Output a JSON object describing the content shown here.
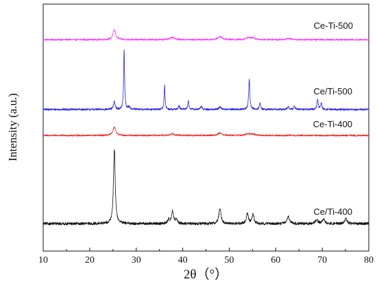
{
  "chart_data": {
    "type": "line",
    "xlabel": "2θ（°）",
    "ylabel": "Intensity (a.u.)",
    "xlim": [
      10,
      80
    ],
    "x_ticks": [
      10,
      20,
      30,
      40,
      50,
      60,
      70,
      80
    ],
    "x_tick_labels": [
      "10",
      "20",
      "30",
      "40",
      "50",
      "60",
      "70",
      "80"
    ],
    "y_ticks_shown": false,
    "grid": false,
    "legend": "none; series labelled inline at right",
    "series": [
      {
        "name": "Ce-Ti-500",
        "color": "#ff33ff",
        "baseline": 0,
        "noise": 0.4,
        "peaks": [
          {
            "x": 25.3,
            "height": 4.8,
            "width": 0.35
          },
          {
            "x": 37.8,
            "height": 1.2,
            "width": 0.5
          },
          {
            "x": 48.0,
            "height": 1.6,
            "width": 0.5
          },
          {
            "x": 54.0,
            "height": 1.0,
            "width": 0.5
          },
          {
            "x": 55.1,
            "height": 0.9,
            "width": 0.5
          },
          {
            "x": 62.7,
            "height": 0.7,
            "width": 0.5
          }
        ]
      },
      {
        "name": "Ce/Ti-500",
        "color": "#2222ee",
        "baseline": 0,
        "noise": 0.35,
        "peaks": [
          {
            "x": 25.3,
            "height": 2.8,
            "width": 0.2
          },
          {
            "x": 27.4,
            "height": 21.0,
            "width": 0.12
          },
          {
            "x": 28.5,
            "height": 0.8,
            "width": 0.3
          },
          {
            "x": 36.1,
            "height": 8.5,
            "width": 0.12
          },
          {
            "x": 39.2,
            "height": 1.3,
            "width": 0.15
          },
          {
            "x": 41.2,
            "height": 3.0,
            "width": 0.15
          },
          {
            "x": 44.0,
            "height": 1.0,
            "width": 0.2
          },
          {
            "x": 48.0,
            "height": 0.8,
            "width": 0.3
          },
          {
            "x": 54.3,
            "height": 10.5,
            "width": 0.15
          },
          {
            "x": 56.6,
            "height": 2.2,
            "width": 0.15
          },
          {
            "x": 62.7,
            "height": 0.9,
            "width": 0.2
          },
          {
            "x": 64.0,
            "height": 1.0,
            "width": 0.2
          },
          {
            "x": 69.0,
            "height": 3.5,
            "width": 0.15
          },
          {
            "x": 69.8,
            "height": 2.2,
            "width": 0.15
          }
        ]
      },
      {
        "name": "Ce-Ti-400",
        "color": "#ee2222",
        "baseline": 0,
        "noise": 0.4,
        "peaks": [
          {
            "x": 25.3,
            "height": 4.0,
            "width": 0.35
          },
          {
            "x": 37.8,
            "height": 0.9,
            "width": 0.5
          },
          {
            "x": 48.0,
            "height": 1.2,
            "width": 0.5
          },
          {
            "x": 54.0,
            "height": 0.8,
            "width": 0.5
          },
          {
            "x": 55.1,
            "height": 0.7,
            "width": 0.5
          }
        ]
      },
      {
        "name": "Ce/Ti-400",
        "color": "#111111",
        "baseline": 0,
        "noise": 0.5,
        "peaks": [
          {
            "x": 25.3,
            "height": 27.5,
            "width": 0.22
          },
          {
            "x": 37.0,
            "height": 1.5,
            "width": 0.25
          },
          {
            "x": 37.8,
            "height": 4.5,
            "width": 0.25
          },
          {
            "x": 38.6,
            "height": 1.4,
            "width": 0.25
          },
          {
            "x": 48.0,
            "height": 5.5,
            "width": 0.28
          },
          {
            "x": 53.9,
            "height": 3.8,
            "width": 0.25
          },
          {
            "x": 55.1,
            "height": 3.6,
            "width": 0.25
          },
          {
            "x": 62.7,
            "height": 2.8,
            "width": 0.28
          },
          {
            "x": 68.8,
            "height": 1.5,
            "width": 0.3
          },
          {
            "x": 70.3,
            "height": 1.7,
            "width": 0.3
          },
          {
            "x": 75.1,
            "height": 1.8,
            "width": 0.3
          }
        ]
      }
    ]
  }
}
